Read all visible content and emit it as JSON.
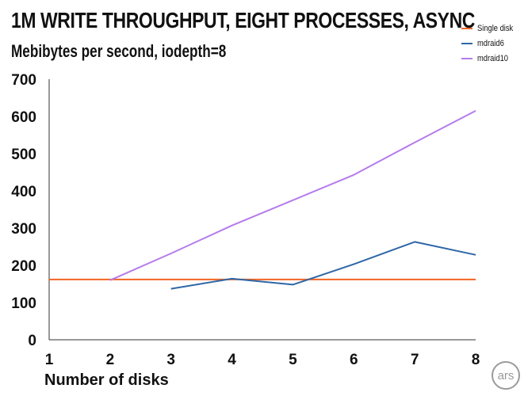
{
  "chart_data": {
    "type": "line",
    "title": "1M WRITE THROUGHPUT, EIGHT PROCESSES, ASYNC",
    "subtitle": "Mebibytes per second, iodepth=8",
    "xlabel": "Number of disks",
    "ylabel": "",
    "x": [
      1,
      2,
      3,
      4,
      5,
      6,
      7,
      8
    ],
    "xlim": [
      1,
      8
    ],
    "ylim": [
      0,
      700
    ],
    "yticks": [
      0,
      100,
      200,
      300,
      400,
      500,
      600,
      700
    ],
    "grid": false,
    "legend_position": "top-right",
    "series": [
      {
        "name": "Single disk",
        "color": "#f26522",
        "points": [
          [
            1,
            162
          ],
          [
            2,
            162
          ],
          [
            3,
            162
          ],
          [
            4,
            162
          ],
          [
            5,
            162
          ],
          [
            6,
            162
          ],
          [
            7,
            162
          ],
          [
            8,
            162
          ]
        ]
      },
      {
        "name": "mdraid6",
        "color": "#2f67a6",
        "points": [
          [
            3,
            137
          ],
          [
            4,
            164
          ],
          [
            5,
            148
          ],
          [
            6,
            203
          ],
          [
            7,
            263
          ],
          [
            8,
            228
          ]
        ]
      },
      {
        "name": "mdraid10",
        "color": "#b57bec",
        "points": [
          [
            2,
            160
          ],
          [
            3,
            232
          ],
          [
            4,
            307
          ],
          [
            5,
            375
          ],
          [
            6,
            443
          ],
          [
            7,
            530
          ],
          [
            8,
            615
          ]
        ]
      }
    ]
  },
  "logo": {
    "text": "ars"
  }
}
